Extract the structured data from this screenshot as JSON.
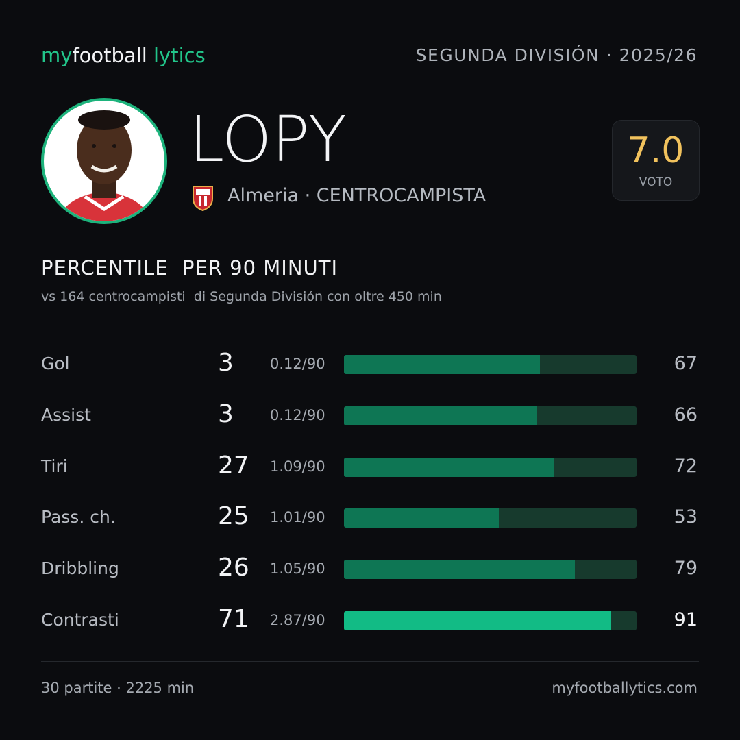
{
  "header": {
    "brand": [
      "my",
      "football",
      "lytics"
    ],
    "league": "SEGUNDA DIVISIÓN · 2025/26"
  },
  "player": {
    "name": "LOPY",
    "team": "Almeria · CENTROCAMPISTA",
    "rating": "7.0",
    "rating_label": "VOTO"
  },
  "section": {
    "title": "PERCENTILE  PER 90 MINUTI",
    "subtitle": "vs 164 centrocampisti  di Segunda División con oltre 450 min"
  },
  "stats": {
    "xlim": [
      0,
      100
    ],
    "bar_color": "#0e7654",
    "highlight_color": "#12bb85",
    "track_color": "#173a2d",
    "rows": [
      {
        "label": "Gol",
        "count": 3,
        "per90": "0.12/90",
        "percentile": 67,
        "highlight": false
      },
      {
        "label": "Assist",
        "count": 3,
        "per90": "0.12/90",
        "percentile": 66,
        "highlight": false
      },
      {
        "label": "Tiri",
        "count": 27,
        "per90": "1.09/90",
        "percentile": 72,
        "highlight": false
      },
      {
        "label": "Pass. ch.",
        "count": 25,
        "per90": "1.01/90",
        "percentile": 53,
        "highlight": false
      },
      {
        "label": "Dribbling",
        "count": 26,
        "per90": "1.05/90",
        "percentile": 79,
        "highlight": false
      },
      {
        "label": "Contrasti",
        "count": 71,
        "per90": "2.87/90",
        "percentile": 91,
        "highlight": true
      }
    ]
  },
  "footer": {
    "summary": "30 partite · 2225 min",
    "site": "myfootballytics.com"
  }
}
